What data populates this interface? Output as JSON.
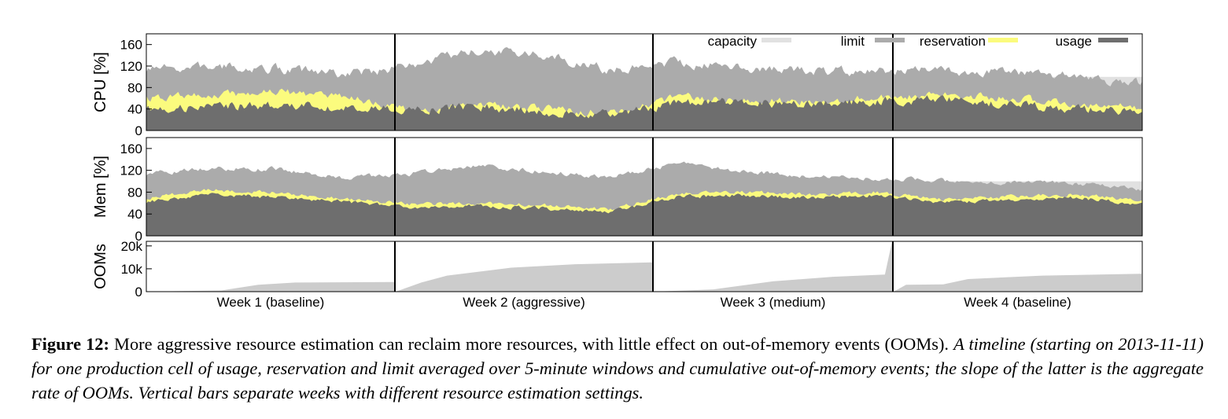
{
  "figure": {
    "label": "Figure 12:",
    "caption_main": "More aggressive resource estimation can reclaim more resources, with little effect on out-of-memory events (OOMs).",
    "caption_italic": "A timeline (starting on 2013-11-11) for one production cell of usage, reservation and limit averaged over 5-minute windows and cumulative out-of-memory events; the slope of the latter is the aggregate rate of OOMs. Vertical bars separate weeks with different resource estimation settings."
  },
  "colors": {
    "capacity": "#e1e1e1",
    "limit": "#ababab",
    "reservation": "#fbfb7e",
    "usage": "#6e6e6e",
    "ooms": "#cccccc"
  },
  "chart_data": [
    {
      "type": "area",
      "ylabel": "CPU [%]",
      "ylim": [
        0,
        180
      ],
      "yticks": [
        0,
        40,
        80,
        120,
        160
      ],
      "ytick_labels": [
        "0",
        "40",
        "80",
        "120",
        "160"
      ],
      "legend": {
        "placement": "top-right",
        "entries": [
          "capacity",
          "limit",
          "reservation",
          "usage"
        ]
      },
      "weeks": [
        "Week 1 (baseline)",
        "Week 2 (aggressive)",
        "Week 3 (medium)",
        "Week 4 (baseline)"
      ],
      "series": [
        {
          "name": "capacity",
          "values": [
            100,
            100,
            100,
            100,
            100,
            100,
            100,
            100,
            100,
            100,
            100,
            100,
            100,
            100,
            100,
            100
          ]
        },
        {
          "name": "limit",
          "values": [
            112,
            118,
            115,
            104,
            120,
            148,
            140,
            112,
            128,
            118,
            112,
            110,
            112,
            108,
            100,
            88
          ]
        },
        {
          "name": "reservation",
          "values": [
            60,
            66,
            72,
            64,
            38,
            50,
            40,
            32,
            62,
            58,
            52,
            62,
            66,
            60,
            50,
            44
          ]
        },
        {
          "name": "usage",
          "values": [
            40,
            45,
            48,
            42,
            38,
            45,
            35,
            30,
            50,
            52,
            48,
            55,
            58,
            48,
            40,
            36
          ]
        }
      ]
    },
    {
      "type": "area",
      "ylabel": "Mem [%]",
      "ylim": [
        0,
        180
      ],
      "yticks": [
        0,
        40,
        80,
        120,
        160
      ],
      "ytick_labels": [
        "0",
        "40",
        "80",
        "120",
        "160"
      ],
      "series": [
        {
          "name": "capacity",
          "values": [
            100,
            100,
            100,
            100,
            100,
            100,
            100,
            100,
            100,
            100,
            100,
            100,
            100,
            100,
            100,
            100
          ]
        },
        {
          "name": "limit",
          "values": [
            112,
            124,
            122,
            106,
            114,
            128,
            118,
            108,
            132,
            118,
            110,
            106,
            100,
            98,
            96,
            86
          ]
        },
        {
          "name": "reservation",
          "values": [
            70,
            84,
            78,
            68,
            58,
            60,
            56,
            48,
            78,
            80,
            76,
            80,
            66,
            72,
            76,
            64
          ]
        },
        {
          "name": "usage",
          "values": [
            62,
            76,
            70,
            62,
            52,
            55,
            50,
            44,
            72,
            74,
            70,
            74,
            60,
            66,
            70,
            58
          ]
        }
      ]
    },
    {
      "type": "area",
      "ylabel": "OOMs",
      "ylim": [
        0,
        22000
      ],
      "yticks": [
        0,
        10000,
        20000
      ],
      "ytick_labels": [
        "0",
        "10k",
        "20k"
      ],
      "x_categories": [
        "Week 1 (baseline)",
        "Week 2 (aggressive)",
        "Week 3 (medium)",
        "Week 4 (baseline)"
      ],
      "series": [
        {
          "name": "OOMs",
          "weeks": [
            {
              "x": [
                0,
                0.3,
                0.45,
                0.6,
                1.0
              ],
              "y": [
                0,
                500,
                3000,
                4000,
                4200
              ]
            },
            {
              "x": [
                0,
                0.1,
                0.2,
                0.45,
                0.7,
                1.0
              ],
              "y": [
                0,
                4000,
                7000,
                10500,
                12000,
                12800
              ]
            },
            {
              "x": [
                0,
                0.25,
                0.5,
                0.75,
                0.97,
                1.0
              ],
              "y": [
                0,
                1000,
                4500,
                6500,
                7500,
                22000
              ]
            },
            {
              "x": [
                0,
                0.05,
                0.2,
                0.3,
                0.6,
                1.0
              ],
              "y": [
                0,
                3000,
                3200,
                5500,
                7000,
                7800
              ]
            }
          ]
        }
      ]
    }
  ]
}
